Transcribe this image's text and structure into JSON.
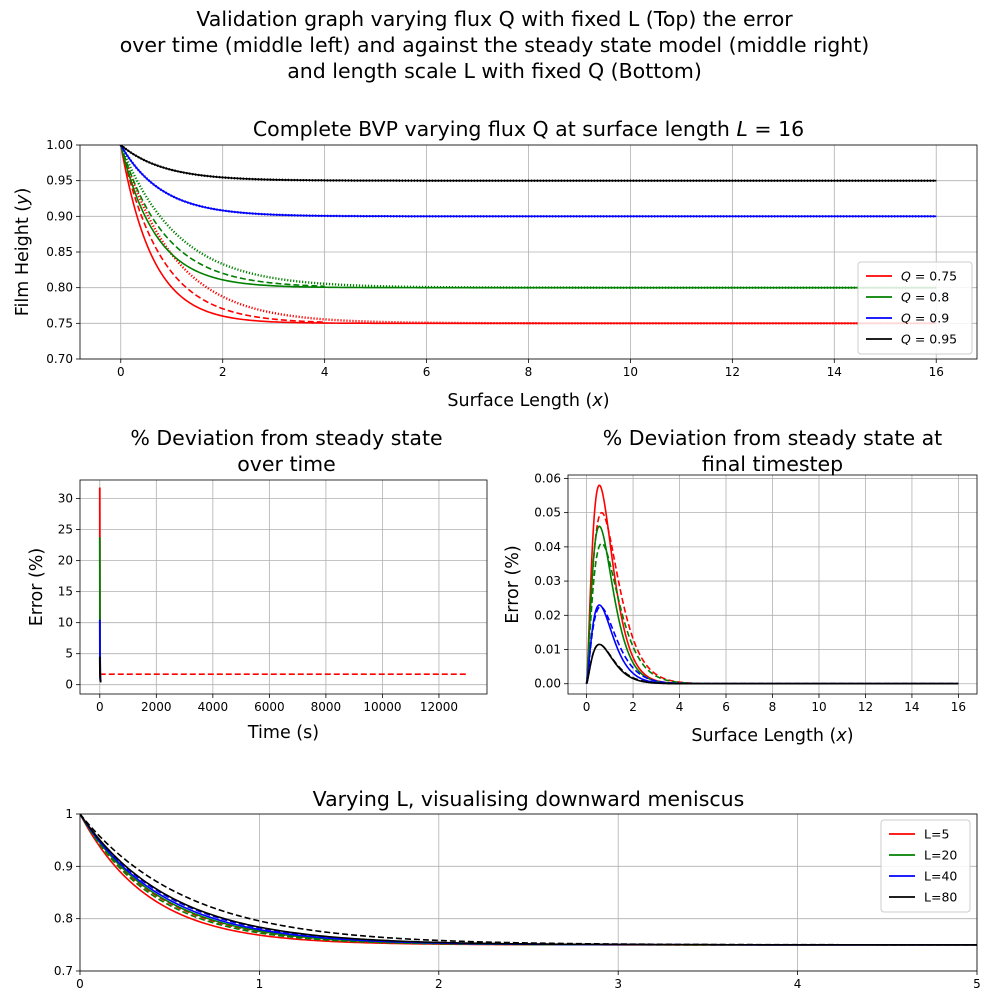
{
  "figure": {
    "suptitle_lines": [
      "Validation graph varying flux Q with fixed L (Top) the error",
      "over time (middle left) and against the steady state model (middle right)",
      "and length scale L with fixed Q (Bottom)"
    ]
  },
  "chart_data": [
    {
      "id": "top",
      "type": "line",
      "title": "Complete BVP varying flux Q at surface length L = 16",
      "title_parts": [
        "Complete BVP varying flux Q at surface length ",
        "L",
        " = 16"
      ],
      "xlabel": "Surface Length (x)",
      "ylabel": "Film Height (y)",
      "xlim": [
        -0.8,
        16.8
      ],
      "ylim": [
        0.7,
        1.0
      ],
      "xticks": [
        0,
        2,
        4,
        6,
        8,
        10,
        12,
        14,
        16
      ],
      "yticks": [
        0.7,
        0.75,
        0.8,
        0.85,
        0.9,
        0.95,
        1.0
      ],
      "ytick_labels": [
        "0.70",
        "0.75",
        "0.80",
        "0.85",
        "0.90",
        "0.95",
        "1.00"
      ],
      "grid": true,
      "legend": {
        "placement": "lower-right",
        "entries": [
          "Q = 0.75",
          "Q = 0.8",
          "Q = 0.9",
          "Q = 0.95"
        ]
      },
      "series": [
        {
          "name": "Q = 0.75",
          "color": "#ff0000",
          "steady": 0.75,
          "solid_k": 1.6,
          "dashed_k": 1.25,
          "dotted_k": 0.95,
          "x_max": 16
        },
        {
          "name": "Q = 0.8",
          "color": "#008000",
          "steady": 0.8,
          "solid_k": 1.45,
          "dashed_k": 1.15,
          "dotted_k": 0.9,
          "x_max": 16
        },
        {
          "name": "Q = 0.9",
          "color": "#0000ff",
          "steady": 0.9,
          "solid_k": 1.25,
          "dashed_k": 1.25,
          "dotted_k": 1.25,
          "x_max": 16
        },
        {
          "name": "Q = 0.95",
          "color": "#000000",
          "steady": 0.95,
          "solid_k": 1.2,
          "dashed_k": 1.2,
          "dotted_k": 1.2,
          "x_max": 16
        }
      ]
    },
    {
      "id": "mid-left",
      "type": "line",
      "title_lines": [
        "% Deviation from steady state",
        "over time"
      ],
      "xlabel": "Time (s)",
      "ylabel": "Error (%)",
      "xlim": [
        -700,
        13700
      ],
      "ylim": [
        -1.5,
        33
      ],
      "xticks": [
        0,
        2000,
        4000,
        6000,
        8000,
        10000,
        12000
      ],
      "yticks": [
        0,
        5,
        10,
        15,
        20,
        25,
        30
      ],
      "grid": true,
      "series": [
        {
          "color": "#ff0000",
          "spike_peak": 31.8,
          "spike_end": 0.5
        },
        {
          "color": "#008000",
          "spike_peak": 23.8,
          "spike_end": 0.5
        },
        {
          "color": "#0000ff",
          "spike_peak": 10.5,
          "spike_end": 0.5
        },
        {
          "color": "#000000",
          "spike_peak": 4.5,
          "spike_end": 0.5
        }
      ],
      "dashed_reference": {
        "color": "#ff0000",
        "value": 1.7,
        "x": [
          0,
          13000
        ]
      }
    },
    {
      "id": "mid-right",
      "type": "line",
      "title_lines": [
        "% Deviation from steady state at",
        "final timestep"
      ],
      "xlabel": "Surface Length (x)",
      "ylabel": "Error (%)",
      "xlim": [
        -0.8,
        16.8
      ],
      "ylim": [
        -0.003,
        0.061
      ],
      "xticks": [
        0,
        2,
        4,
        6,
        8,
        10,
        12,
        14,
        16
      ],
      "yticks": [
        0.0,
        0.01,
        0.02,
        0.03,
        0.04,
        0.05,
        0.06
      ],
      "ytick_labels": [
        "0.00",
        "0.01",
        "0.02",
        "0.03",
        "0.04",
        "0.05",
        "0.06"
      ],
      "grid": true,
      "series": [
        {
          "color": "#ff0000",
          "peak": 0.058,
          "peak_x": 0.55,
          "dashed_peak": 0.05,
          "dashed_peak_x": 0.65
        },
        {
          "color": "#008000",
          "peak": 0.046,
          "peak_x": 0.55,
          "dashed_peak": 0.041,
          "dashed_peak_x": 0.65
        },
        {
          "color": "#0000ff",
          "peak": 0.023,
          "peak_x": 0.55,
          "dashed_peak": 0.0225,
          "dashed_peak_x": 0.6
        },
        {
          "color": "#000000",
          "peak": 0.0115,
          "peak_x": 0.55,
          "dashed_peak": 0.0115,
          "dashed_peak_x": 0.55
        }
      ]
    },
    {
      "id": "bottom",
      "type": "line",
      "title": "Varying L, visualising downward meniscus",
      "xlim": [
        0,
        5
      ],
      "ylim": [
        0.7,
        1.0
      ],
      "xticks": [
        0,
        1,
        2,
        3,
        4,
        5
      ],
      "yticks": [
        0.7,
        0.8,
        0.9,
        1.0
      ],
      "grid": true,
      "legend": {
        "placement": "top-right",
        "entries": [
          "L=5",
          "L=20",
          "L=40",
          "L=80"
        ]
      },
      "steady": 0.75,
      "series": [
        {
          "name": "L=5",
          "color": "#ff0000",
          "solid_k": 2.6,
          "dashed_k": 2.3
        },
        {
          "name": "L=20",
          "color": "#008000",
          "solid_k": 2.25,
          "dashed_k": 2.4
        },
        {
          "name": "L=40",
          "color": "#0000ff",
          "solid_k": 2.15,
          "dashed_k": 2.05
        },
        {
          "name": "L=80",
          "color": "#000000",
          "solid_k": 2.0,
          "dashed_k": 1.7
        }
      ]
    }
  ]
}
